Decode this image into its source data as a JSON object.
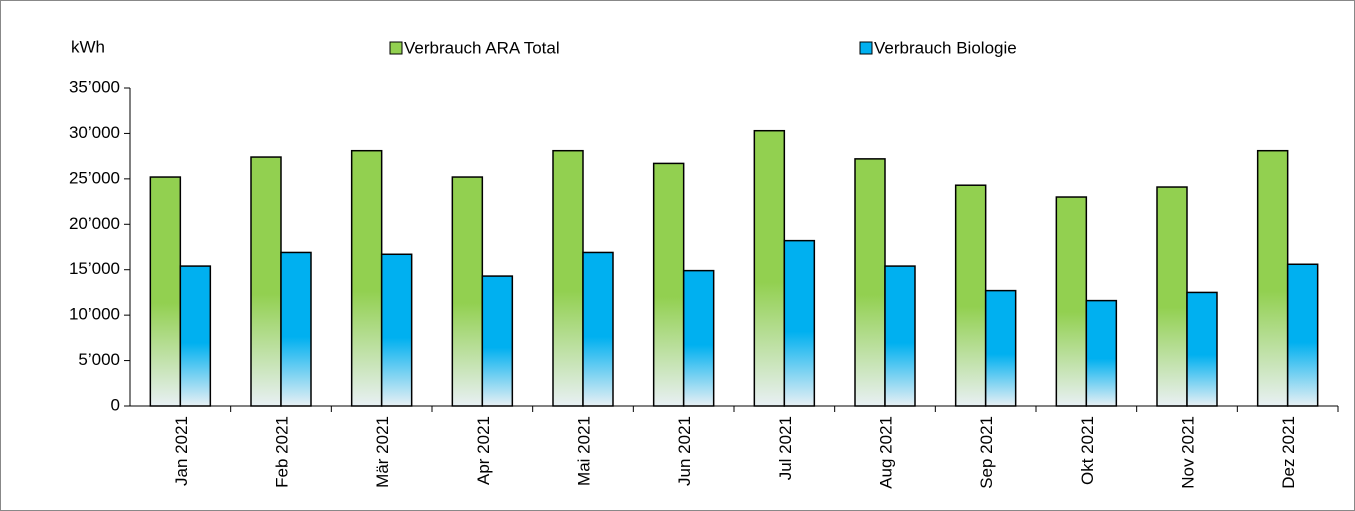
{
  "chart_data": {
    "type": "bar",
    "y_label": "kWh",
    "categories": [
      "Jan 2021",
      "Feb 2021",
      "Mär 2021",
      "Apr 2021",
      "Mai 2021",
      "Jun 2021",
      "Jul 2021",
      "Aug 2021",
      "Sep 2021",
      "Okt 2021",
      "Nov 2021",
      "Dez 2021"
    ],
    "series": [
      {
        "name": "Verbrauch ARA Total",
        "color": "#92d050",
        "values": [
          25200,
          27400,
          28100,
          25200,
          28100,
          26700,
          30300,
          27200,
          24300,
          23000,
          24100,
          28100
        ]
      },
      {
        "name": "Verbrauch Biologie",
        "color": "#00b0f0",
        "values": [
          15400,
          16900,
          16700,
          14300,
          16900,
          14900,
          18200,
          15400,
          12700,
          11600,
          12500,
          15600
        ]
      }
    ],
    "ylim": [
      0,
      35000
    ],
    "yticks": [
      0,
      {
        "value": 5000,
        "label": "5’000"
      },
      {
        "value": 10000,
        "label": "10’000"
      },
      {
        "value": 15000,
        "label": "15’000"
      },
      {
        "value": 20000,
        "label": "20’000"
      },
      {
        "value": 25000,
        "label": "25’000"
      },
      {
        "value": 30000,
        "label": "30’000"
      },
      {
        "value": 35000,
        "label": "35’000"
      }
    ],
    "grid": false
  }
}
